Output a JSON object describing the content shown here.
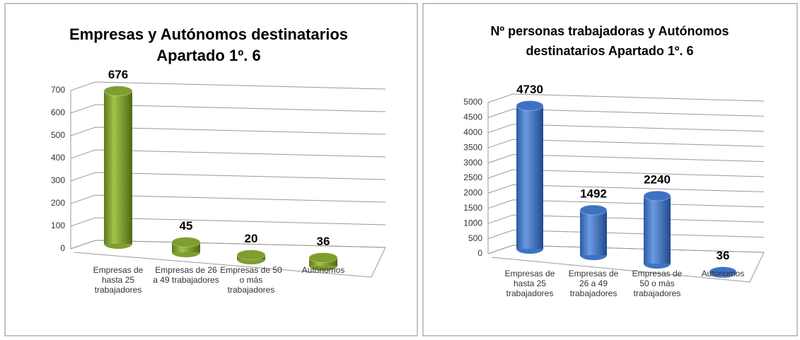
{
  "chart_data": [
    {
      "type": "bar3d",
      "title": [
        "Empresas y Autónomos destinatarios",
        "Apartado 1º. 6"
      ],
      "categories": [
        "Empresas de hasta 25 trabajadores",
        "Empresas de 26 a 49 trabajadores",
        "Empresas de 50 o más trabajadores",
        "Autónomos"
      ],
      "values": [
        676,
        45,
        20,
        36
      ],
      "color": "#7f9e2e",
      "ylim": [
        0,
        700
      ],
      "yticks": [
        0,
        100,
        200,
        300,
        400,
        500,
        600,
        700
      ],
      "grid": true
    },
    {
      "type": "bar3d",
      "title": [
        "Nº personas trabajadoras y Autónomos",
        "destinatarios Apartado 1º. 6"
      ],
      "categories": [
        "Empresas de hasta 25 trabajadores",
        "Empresas de 26 a 49 trabajadores",
        "Empresas de 50 o más trabajadores",
        "Autónomos"
      ],
      "values": [
        4730,
        1492,
        2240,
        36
      ],
      "color": "#3d72c4",
      "ylim": [
        0,
        5000
      ],
      "yticks": [
        0,
        500,
        1000,
        1500,
        2000,
        2500,
        3000,
        3500,
        4000,
        4500,
        5000
      ],
      "grid": true
    }
  ]
}
